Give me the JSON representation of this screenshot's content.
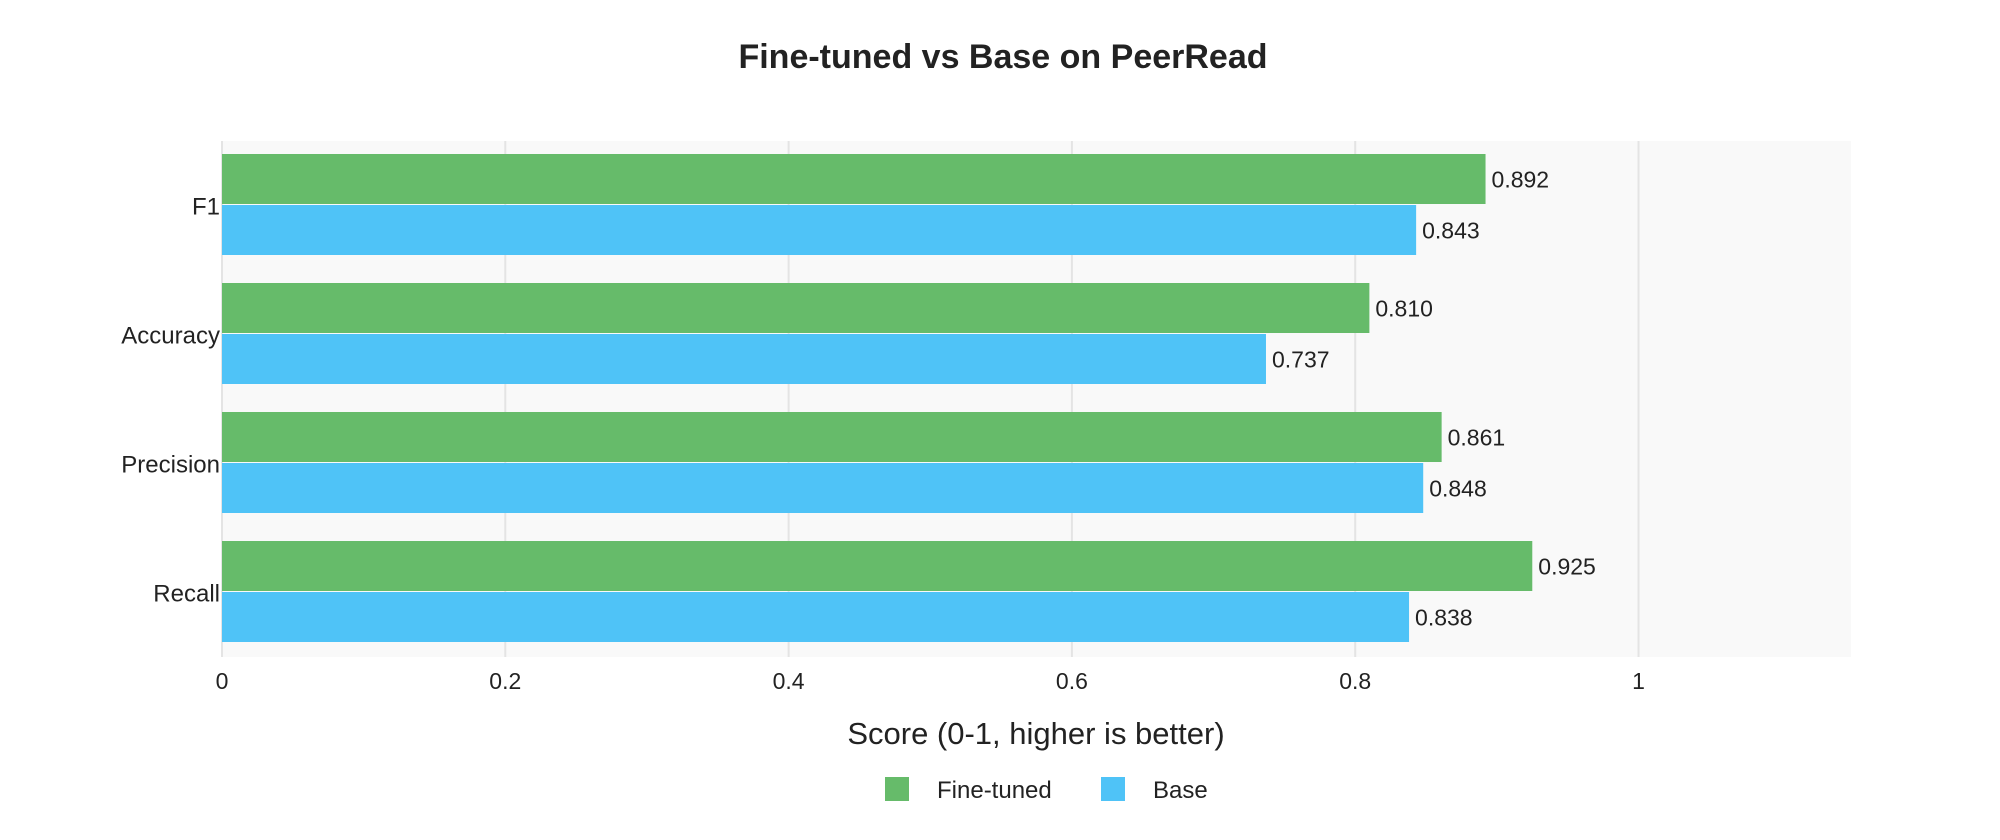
{
  "chart_data": {
    "type": "bar",
    "orientation": "horizontal",
    "title": "Fine-tuned vs Base on PeerRead",
    "xlabel": "Score (0-1, higher is better)",
    "ylabel": "",
    "categories": [
      "F1",
      "Accuracy",
      "Precision",
      "Recall"
    ],
    "series": [
      {
        "name": "Fine-tuned",
        "color": "#66bb6a",
        "values": [
          0.892,
          0.81,
          0.861,
          0.925
        ],
        "value_labels": [
          "0.892",
          "0.810",
          "0.861",
          "0.925"
        ]
      },
      {
        "name": "Base",
        "color": "#4fc3f7",
        "values": [
          0.843,
          0.737,
          0.848,
          0.838
        ],
        "value_labels": [
          "0.843",
          "0.737",
          "0.848",
          "0.838"
        ]
      }
    ],
    "xlim": [
      0,
      1.15
    ],
    "xticks": [
      0,
      0.2,
      0.4,
      0.6,
      0.8,
      1
    ],
    "xtick_labels": [
      "0",
      "0.2",
      "0.4",
      "0.6",
      "0.8",
      "1"
    ],
    "grid": true,
    "plot_background": "#f9f9f9",
    "legend_placement": "bottom-center"
  }
}
